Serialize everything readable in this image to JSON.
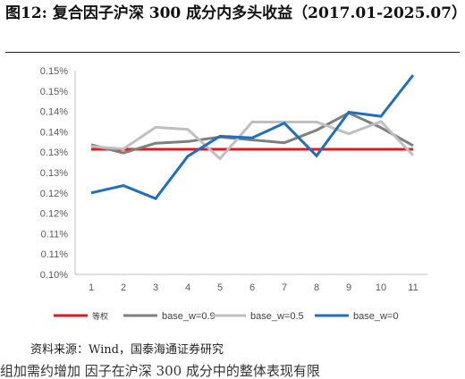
{
  "figure": {
    "title": "图12:  复合因子沪深 300 成分内多头收益（2017.01-2025.07）",
    "source": "资料来源：Wind，国泰海通证券研究",
    "cut_off_text": "组加需约增加  因子在沪深 300 成分中的整体表现有限"
  },
  "chart_data": {
    "type": "line",
    "x": [
      1,
      2,
      3,
      4,
      5,
      6,
      7,
      8,
      9,
      10,
      11
    ],
    "categories": [
      "1",
      "2",
      "3",
      "4",
      "5",
      "6",
      "7",
      "8",
      "9",
      "10",
      "11"
    ],
    "y_ticks": [
      "0.10%",
      "0.11%",
      "0.11%",
      "0.12%",
      "0.12%",
      "0.13%",
      "0.13%",
      "0.14%",
      "0.14%",
      "0.15%",
      "0.15%"
    ],
    "ylim": [
      0.1,
      0.15
    ],
    "ytick_step": 0.005,
    "y_unit": "%",
    "grid": false,
    "legend_position": "bottom",
    "series": [
      {
        "name": "等权",
        "color": "#e0191f",
        "values": [
          0.1307,
          0.1307,
          0.1307,
          0.1307,
          0.1307,
          0.1307,
          0.1307,
          0.1307,
          0.1307,
          0.1307,
          0.1307
        ]
      },
      {
        "name": "base_w=0.9",
        "color": "#7f7f7f",
        "values": [
          0.1318,
          0.1298,
          0.1322,
          0.1326,
          0.1337,
          0.133,
          0.1323,
          0.1354,
          0.1396,
          0.136,
          0.1316
        ]
      },
      {
        "name": "base_w=0.5",
        "color": "#bfbfbf",
        "values": [
          0.1314,
          0.1308,
          0.1361,
          0.1356,
          0.1284,
          0.1374,
          0.1374,
          0.1374,
          0.1345,
          0.1375,
          0.1292
        ]
      },
      {
        "name": "base_w=0",
        "color": "#1f6fbf",
        "values": [
          0.12,
          0.1218,
          0.1186,
          0.129,
          0.1339,
          0.1335,
          0.1371,
          0.1291,
          0.1398,
          0.1388,
          0.1489
        ]
      }
    ]
  }
}
